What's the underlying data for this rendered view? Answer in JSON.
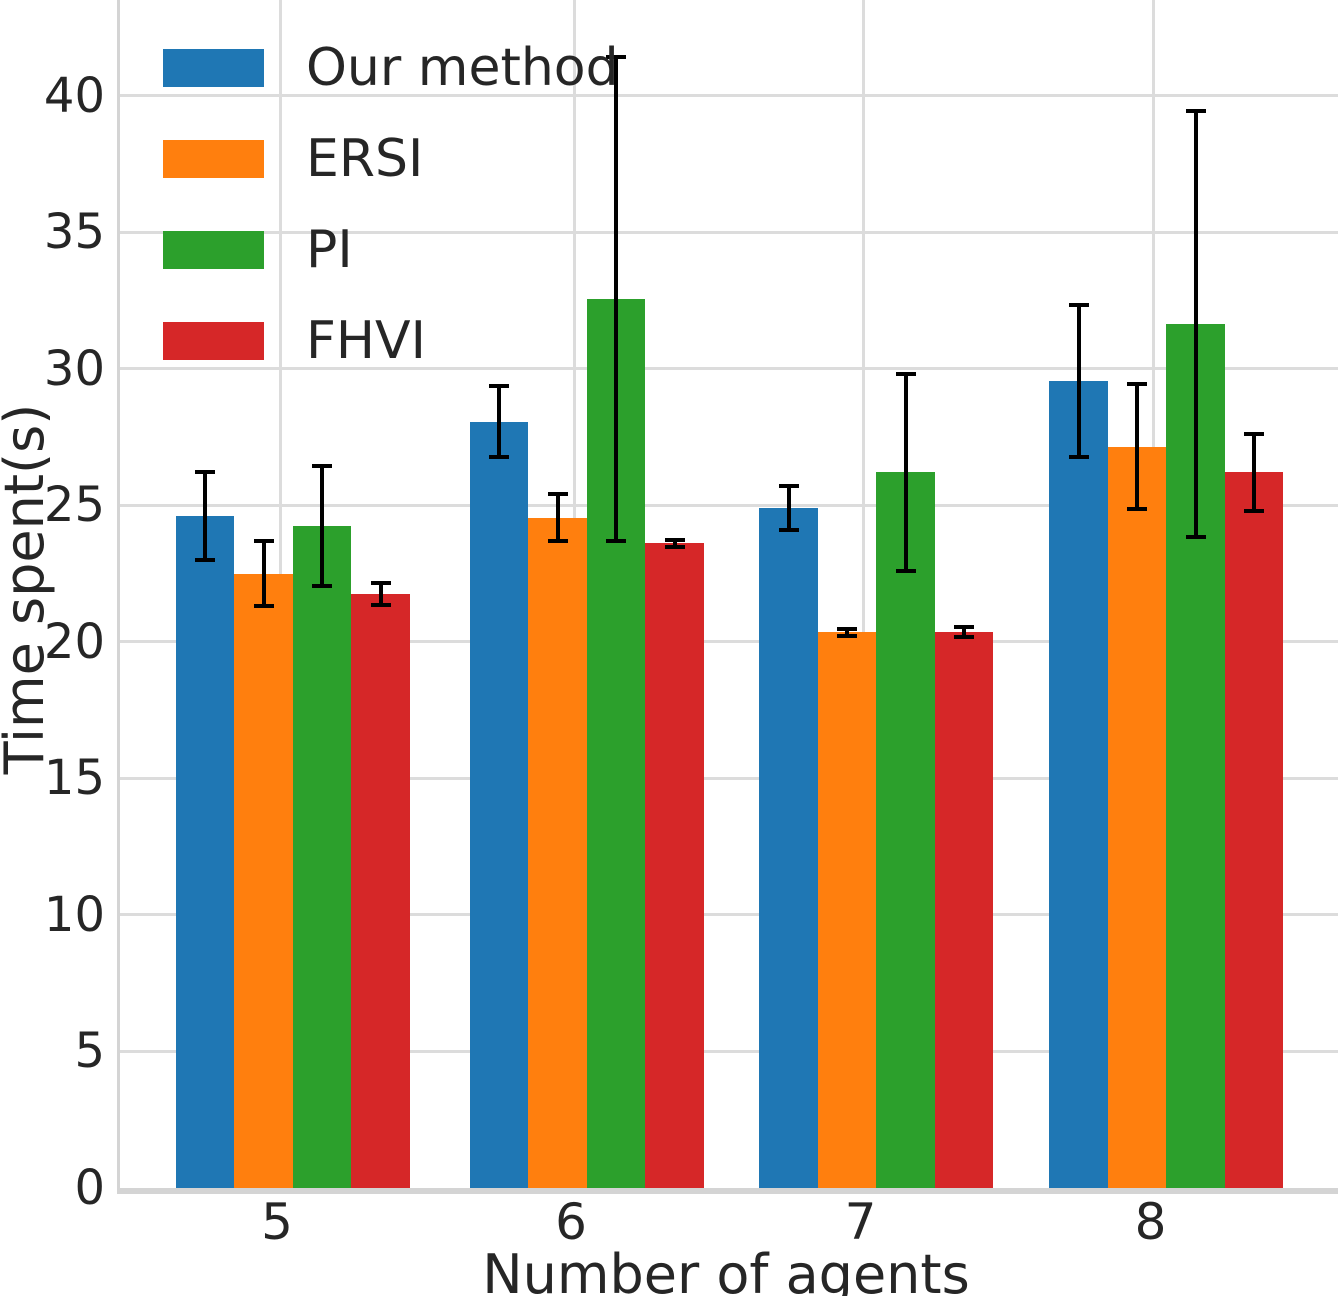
{
  "figure": {
    "background": "#ffffff",
    "grid_color": "#dcdcdc",
    "spine_color": "#d4d4d4",
    "text_color": "#262626",
    "error_bar_color": "#000000"
  },
  "chart_data": {
    "type": "bar",
    "title": "",
    "xlabel": "Number of agents",
    "ylabel": "Time spent(s)",
    "categories": [
      "5",
      "6",
      "7",
      "8"
    ],
    "series": [
      {
        "name": "Our method",
        "color": "#1f77b4",
        "values": [
          24.6,
          28.05,
          24.9,
          29.55
        ],
        "yerr": [
          1.6,
          1.3,
          0.8,
          2.8
        ]
      },
      {
        "name": "ERSI",
        "color": "#ff7f0e",
        "values": [
          22.5,
          24.55,
          20.35,
          27.15
        ],
        "yerr": [
          1.2,
          0.85,
          0.12,
          2.3
        ]
      },
      {
        "name": "PI",
        "color": "#2ca02c",
        "values": [
          24.25,
          32.55,
          26.2,
          31.65
        ],
        "yerr": [
          2.2,
          8.85,
          3.6,
          7.8
        ]
      },
      {
        "name": "FHVI",
        "color": "#d62728",
        "values": [
          21.75,
          23.6,
          20.35,
          26.2
        ],
        "yerr": [
          0.4,
          0.12,
          0.18,
          1.4
        ]
      }
    ],
    "ylim": [
      0,
      43.5
    ],
    "yticks": [
      0,
      5,
      10,
      15,
      20,
      25,
      30,
      35,
      40
    ],
    "grid": "both",
    "legend_position": "upper-left",
    "legend_frame": false
  }
}
